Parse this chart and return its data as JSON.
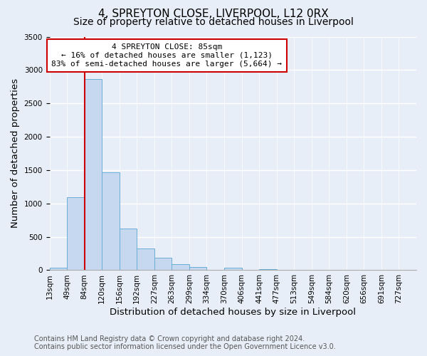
{
  "title": "4, SPREYTON CLOSE, LIVERPOOL, L12 0RX",
  "subtitle": "Size of property relative to detached houses in Liverpool",
  "xlabel": "Distribution of detached houses by size in Liverpool",
  "ylabel": "Number of detached properties",
  "bin_labels": [
    "13sqm",
    "49sqm",
    "84sqm",
    "120sqm",
    "156sqm",
    "192sqm",
    "227sqm",
    "263sqm",
    "299sqm",
    "334sqm",
    "370sqm",
    "406sqm",
    "441sqm",
    "477sqm",
    "513sqm",
    "549sqm",
    "584sqm",
    "620sqm",
    "656sqm",
    "691sqm",
    "727sqm"
  ],
  "bar_values": [
    40,
    1090,
    2870,
    1470,
    620,
    330,
    190,
    95,
    50,
    0,
    35,
    0,
    20,
    0,
    0,
    0,
    0,
    0,
    0,
    0,
    0
  ],
  "bar_color": "#c5d8f0",
  "bar_edge_color": "#6aaed6",
  "property_line_color": "#cc0000",
  "annotation_text": "4 SPREYTON CLOSE: 85sqm\n← 16% of detached houses are smaller (1,123)\n83% of semi-detached houses are larger (5,664) →",
  "annotation_box_facecolor": "#ffffff",
  "annotation_box_edgecolor": "#cc0000",
  "ylim": [
    0,
    3500
  ],
  "yticks": [
    0,
    500,
    1000,
    1500,
    2000,
    2500,
    3000,
    3500
  ],
  "footer_line1": "Contains HM Land Registry data © Crown copyright and database right 2024.",
  "footer_line2": "Contains public sector information licensed under the Open Government Licence v3.0.",
  "fig_facecolor": "#e8eef7",
  "axes_facecolor": "#e8eef7",
  "grid_color": "#ffffff",
  "title_fontsize": 11,
  "subtitle_fontsize": 10,
  "axis_label_fontsize": 9.5,
  "tick_fontsize": 7.5,
  "annotation_fontsize": 8,
  "footer_fontsize": 7
}
